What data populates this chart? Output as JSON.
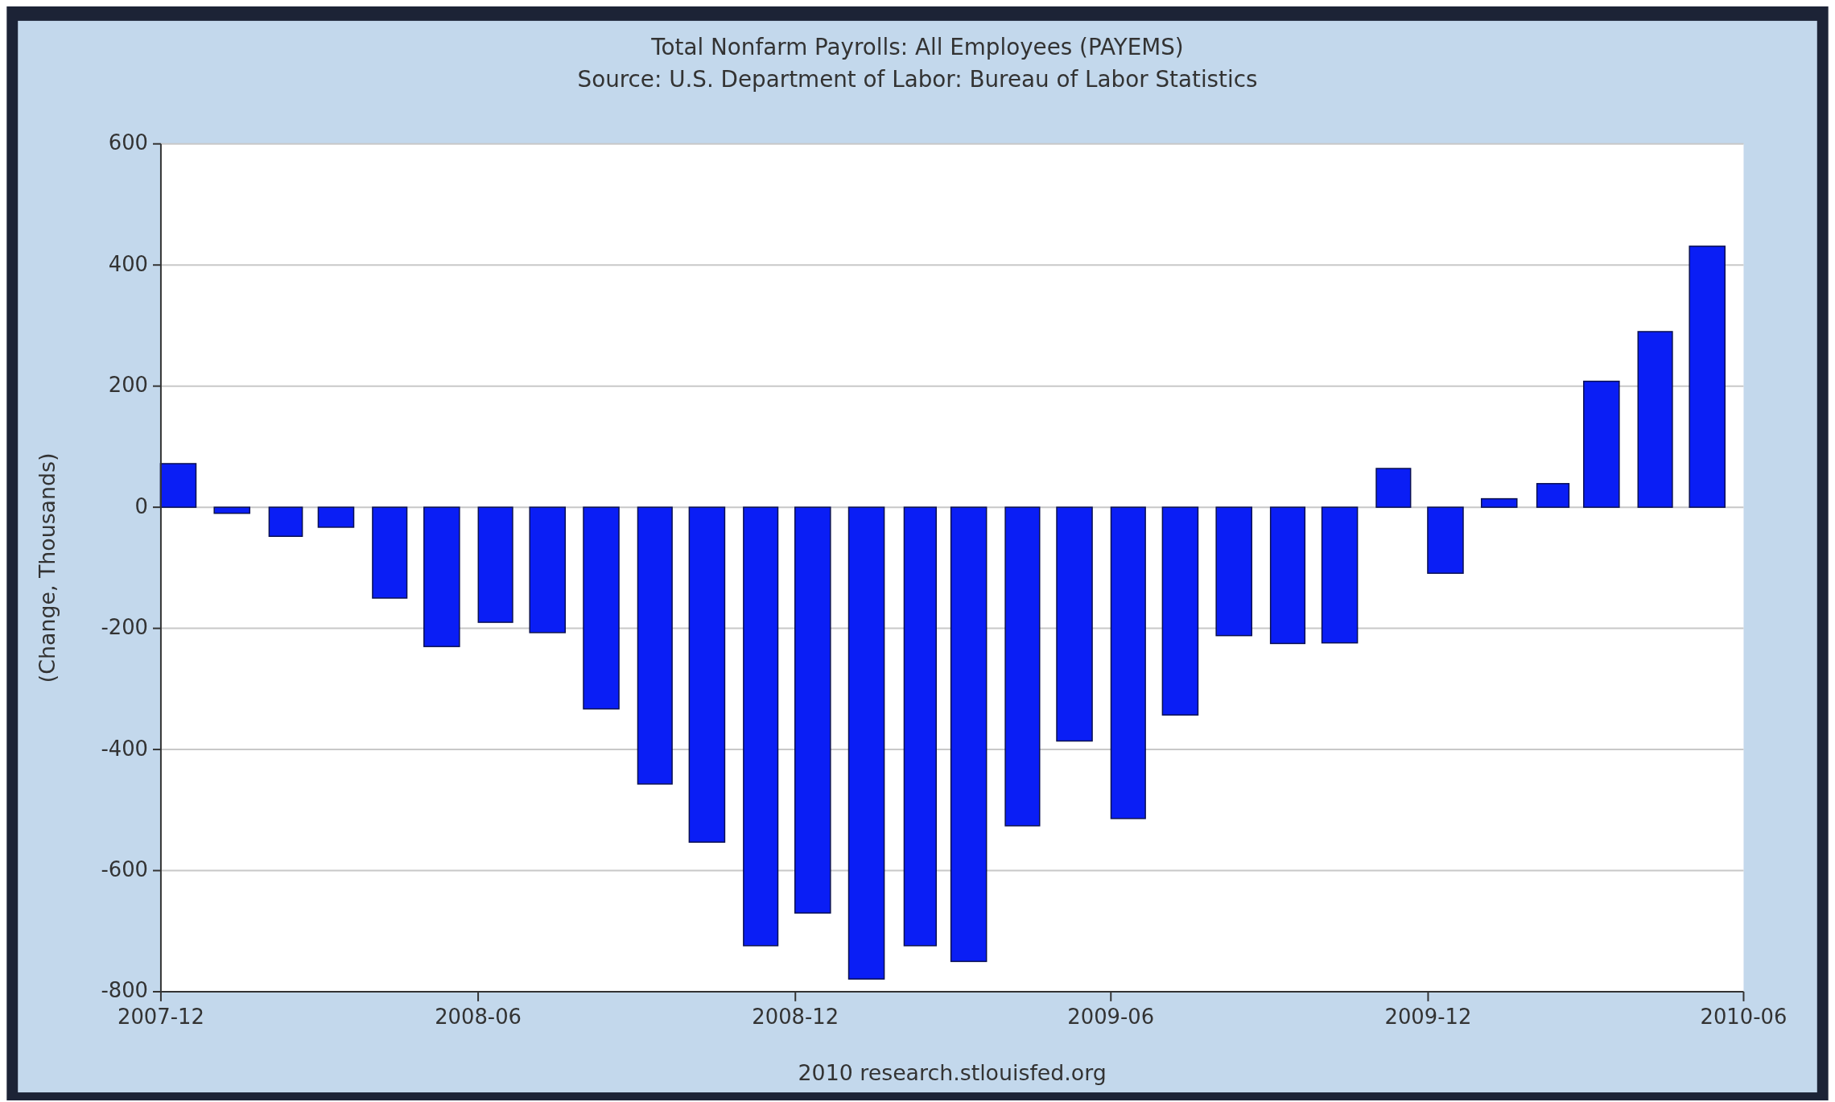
{
  "chart_data": {
    "type": "bar",
    "title": "Total Nonfarm Payrolls: All Employees (PAYEMS)",
    "subtitle": "Source: U.S. Department of Labor: Bureau of Labor Statistics",
    "ylabel": "(Change, Thousands)",
    "annotations": [
      "2010 research.stlouisfed.org"
    ],
    "x": [
      "2007-12-11",
      "2008-01-11",
      "2008-02-11",
      "2008-03-11",
      "2008-04-11",
      "2008-05-11",
      "2008-06-11",
      "2008-07-11",
      "2008-08-11",
      "2008-09-11",
      "2008-10-11",
      "2008-11-11",
      "2008-12-11",
      "2009-01-11",
      "2009-02-11",
      "2009-03-11",
      "2009-04-11",
      "2009-05-11",
      "2009-06-11",
      "2009-07-11",
      "2009-08-11",
      "2009-09-11",
      "2009-10-11",
      "2009-11-11",
      "2009-12-11",
      "2010-01-11",
      "2010-02-11",
      "2010-03-11",
      "2010-04-11",
      "2010-05-11"
    ],
    "values": [
      72,
      -10,
      -48,
      -33,
      -150,
      -230,
      -190,
      -207,
      -333,
      -457,
      -553,
      -724,
      -670,
      -779,
      -724,
      -750,
      -526,
      -386,
      -514,
      -343,
      -212,
      -225,
      -224,
      64,
      -109,
      14,
      39,
      208,
      290,
      431
    ],
    "color": "#0a1ef5",
    "xlim": [
      "2007-12",
      "2010-06"
    ],
    "xticks": [
      "2007-12",
      "2008-06",
      "2008-12",
      "2009-06",
      "2009-12",
      "2010-06"
    ],
    "ylim": [
      -800,
      600
    ],
    "yticks": [
      -800,
      -600,
      -400,
      -200,
      0,
      200,
      400,
      600
    ],
    "grid": "y"
  }
}
